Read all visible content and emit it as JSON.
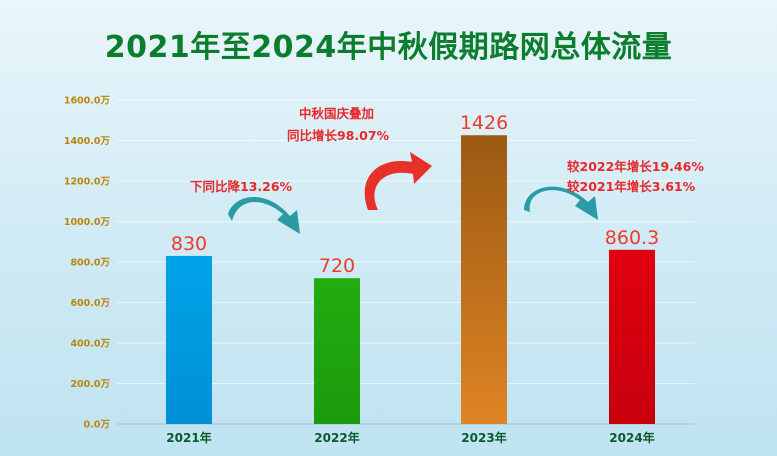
{
  "chart_data": {
    "type": "bar",
    "title": "2021年至2024年中秋假期路网总体流量",
    "categories": [
      "2021年",
      "2022年",
      "2023年",
      "2024年"
    ],
    "values": [
      830,
      720,
      1426,
      860.3
    ],
    "value_labels": [
      "830",
      "720",
      "1426",
      "860.3"
    ],
    "colors": [
      "#00a3e8",
      "#22ad0f",
      "#c7701b",
      "#e00010"
    ],
    "ylim": [
      0,
      1600
    ],
    "y_ticks": [
      "0.0万",
      "200.0万",
      "400.0万",
      "600.0万",
      "800.0万",
      "1000.0万",
      "1200.0万",
      "1400.0万",
      "1600.0万"
    ],
    "annotations": {
      "drop_2022": "下同比降13.26%",
      "surge_2023_line1": "中秋国庆叠加",
      "surge_2023_line2": "同比增长98.07%",
      "growth_2024_line1": "较2022年增长19.46%",
      "growth_2024_line2": "较2021年增长3.61%"
    },
    "arrow_colors": {
      "teal": "#2a9aa5",
      "red": "#e8302a"
    }
  }
}
